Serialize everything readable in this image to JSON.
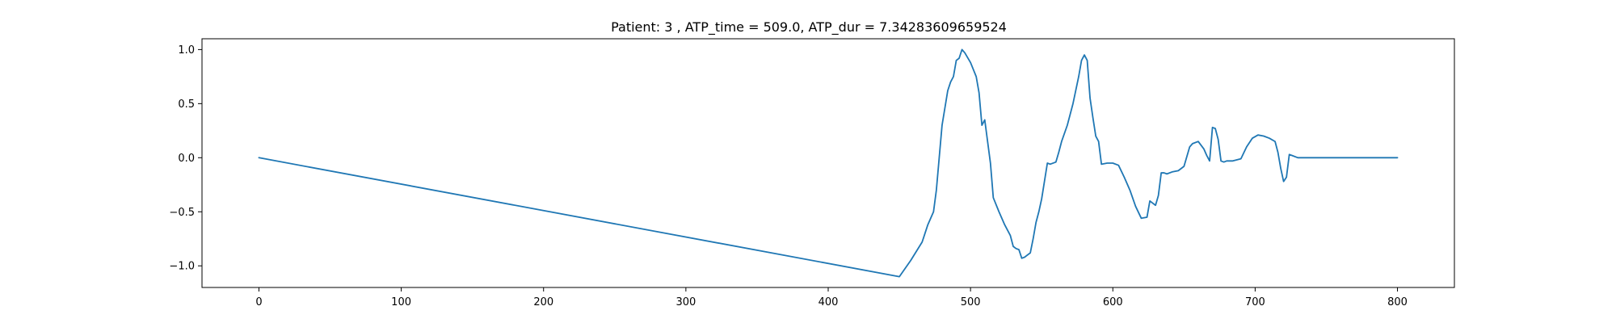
{
  "chart_data": {
    "type": "line",
    "title": "Patient: 3 , ATP_time = 509.0, ATP_dur = 7.34283609659524",
    "xlabel": "",
    "ylabel": "",
    "xlim": [
      -40,
      840
    ],
    "ylim": [
      -1.2,
      1.1
    ],
    "xticks": [
      0,
      100,
      200,
      300,
      400,
      500,
      600,
      700,
      800
    ],
    "xtick_labels": [
      "0",
      "100",
      "200",
      "300",
      "400",
      "500",
      "600",
      "700",
      "800"
    ],
    "yticks": [
      -1.0,
      -0.5,
      0.0,
      0.5,
      1.0
    ],
    "ytick_labels": [
      "−1.0",
      "−0.5",
      "0.0",
      "0.5",
      "1.0"
    ],
    "grid": false,
    "line_color": "#1f77b4",
    "series": [
      {
        "x": [
          0,
          450,
          458,
          466,
          470,
          474,
          476,
          478,
          480,
          484,
          486,
          488,
          490,
          492,
          494,
          496,
          500,
          504,
          506,
          508,
          510,
          512,
          514,
          516,
          520,
          524,
          528,
          530,
          532,
          534,
          536,
          538,
          542,
          544,
          546,
          548,
          550,
          554,
          556,
          560,
          562,
          564,
          568,
          572,
          576,
          578,
          580,
          582,
          584,
          586,
          588,
          590,
          592,
          596,
          600,
          604,
          608,
          612,
          616,
          620,
          624,
          626,
          628,
          630,
          632,
          634,
          636,
          638,
          642,
          646,
          650,
          654,
          656,
          660,
          664,
          666,
          668,
          670,
          672,
          674,
          676,
          678,
          680,
          684,
          690,
          694,
          698,
          702,
          706,
          710,
          714,
          716,
          718,
          720,
          722,
          724,
          726,
          730,
          740,
          760,
          780,
          800
        ],
        "y": [
          0.0,
          -1.1,
          -0.95,
          -0.78,
          -0.62,
          -0.5,
          -0.3,
          0.0,
          0.3,
          0.62,
          0.7,
          0.75,
          0.9,
          0.92,
          1.0,
          0.97,
          0.88,
          0.75,
          0.6,
          0.3,
          0.35,
          0.15,
          -0.05,
          -0.37,
          -0.5,
          -0.62,
          -0.72,
          -0.82,
          -0.84,
          -0.85,
          -0.93,
          -0.92,
          -0.88,
          -0.75,
          -0.6,
          -0.5,
          -0.38,
          -0.05,
          -0.06,
          -0.04,
          0.05,
          0.15,
          0.3,
          0.5,
          0.75,
          0.9,
          0.95,
          0.9,
          0.55,
          0.37,
          0.2,
          0.15,
          -0.06,
          -0.05,
          -0.05,
          -0.07,
          -0.18,
          -0.3,
          -0.45,
          -0.56,
          -0.55,
          -0.4,
          -0.42,
          -0.44,
          -0.35,
          -0.14,
          -0.14,
          -0.15,
          -0.13,
          -0.12,
          -0.08,
          0.1,
          0.13,
          0.15,
          0.08,
          0.02,
          -0.03,
          0.28,
          0.27,
          0.17,
          -0.03,
          -0.04,
          -0.03,
          -0.03,
          -0.01,
          0.1,
          0.18,
          0.21,
          0.2,
          0.18,
          0.15,
          0.05,
          -0.1,
          -0.22,
          -0.18,
          0.03,
          0.02,
          0.0,
          0.0,
          0.0,
          0.0,
          0.0
        ]
      }
    ]
  }
}
